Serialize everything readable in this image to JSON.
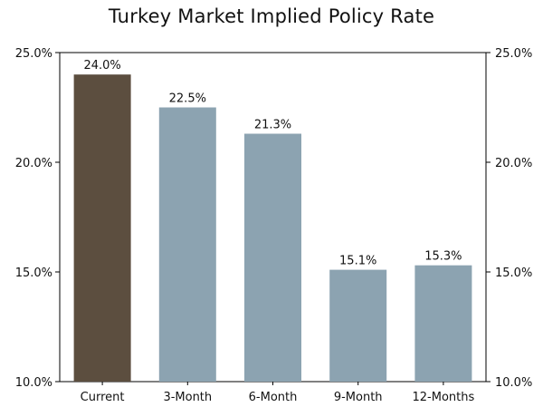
{
  "chart_data": {
    "type": "bar",
    "title": "Turkey Market Implied Policy Rate",
    "categories": [
      "Current",
      "3-Month",
      "6-Month",
      "9-Month",
      "12-Months"
    ],
    "values": [
      24.0,
      22.5,
      21.3,
      15.1,
      15.3
    ],
    "data_labels": [
      "24.0%",
      "22.5%",
      "21.3%",
      "15.1%",
      "15.3%"
    ],
    "bar_colors": [
      "#5c4e3f",
      "#8ca3b1",
      "#8ca3b1",
      "#8ca3b1",
      "#8ca3b1"
    ],
    "ylim": [
      10,
      25
    ],
    "yticks": [
      10,
      15,
      20,
      25
    ],
    "ytick_labels": [
      "10.0%",
      "15.0%",
      "20.0%",
      "25.0%"
    ],
    "secondary_y_axis": true,
    "grid": false,
    "xlabel": "",
    "ylabel": ""
  },
  "colors": {
    "frame": "#000000",
    "text": "#111111",
    "background": "#ffffff"
  }
}
